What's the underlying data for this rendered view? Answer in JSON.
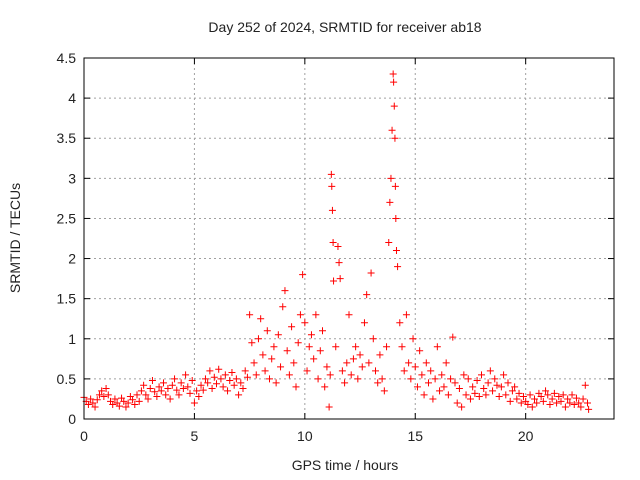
{
  "chart_data": {
    "type": "scatter",
    "title": "Day 252 of 2024, SRMTID for receiver ab18",
    "xlabel": "GPS time / hours",
    "ylabel": "SRMTID / TECUs",
    "xlim": [
      0,
      24
    ],
    "ylim": [
      0,
      4.5
    ],
    "x_ticks": [
      0,
      5,
      10,
      15,
      20
    ],
    "x_tick_labels": [
      "0",
      "5",
      "10",
      "15",
      "20"
    ],
    "y_ticks": [
      0,
      0.5,
      1,
      1.5,
      2,
      2.5,
      3,
      3.5,
      4,
      4.5
    ],
    "y_tick_labels": [
      "0",
      "0.5",
      "1",
      "1.5",
      "2",
      "2.5",
      "3",
      "3.5",
      "4",
      "4.5"
    ],
    "grid": true,
    "marker": "+",
    "series": [
      {
        "name": "SRMTID",
        "color": "#ff0000",
        "points": [
          [
            0.0,
            0.27
          ],
          [
            0.1,
            0.22
          ],
          [
            0.2,
            0.18
          ],
          [
            0.3,
            0.25
          ],
          [
            0.4,
            0.2
          ],
          [
            0.5,
            0.15
          ],
          [
            0.6,
            0.24
          ],
          [
            0.7,
            0.3
          ],
          [
            0.8,
            0.35
          ],
          [
            0.9,
            0.28
          ],
          [
            1.0,
            0.38
          ],
          [
            1.1,
            0.3
          ],
          [
            1.2,
            0.22
          ],
          [
            1.3,
            0.18
          ],
          [
            1.4,
            0.25
          ],
          [
            1.5,
            0.2
          ],
          [
            1.6,
            0.16
          ],
          [
            1.7,
            0.26
          ],
          [
            1.8,
            0.22
          ],
          [
            1.9,
            0.15
          ],
          [
            2.0,
            0.2
          ],
          [
            2.1,
            0.28
          ],
          [
            2.2,
            0.24
          ],
          [
            2.3,
            0.18
          ],
          [
            2.4,
            0.3
          ],
          [
            2.5,
            0.22
          ],
          [
            2.6,
            0.35
          ],
          [
            2.7,
            0.42
          ],
          [
            2.8,
            0.3
          ],
          [
            2.9,
            0.25
          ],
          [
            3.0,
            0.38
          ],
          [
            3.1,
            0.48
          ],
          [
            3.2,
            0.34
          ],
          [
            3.3,
            0.28
          ],
          [
            3.4,
            0.4
          ],
          [
            3.5,
            0.35
          ],
          [
            3.6,
            0.45
          ],
          [
            3.7,
            0.3
          ],
          [
            3.8,
            0.38
          ],
          [
            3.9,
            0.25
          ],
          [
            4.0,
            0.42
          ],
          [
            4.1,
            0.5
          ],
          [
            4.2,
            0.36
          ],
          [
            4.3,
            0.3
          ],
          [
            4.4,
            0.45
          ],
          [
            4.5,
            0.38
          ],
          [
            4.6,
            0.55
          ],
          [
            4.7,
            0.4
          ],
          [
            4.8,
            0.32
          ],
          [
            4.9,
            0.48
          ],
          [
            5.0,
            0.2
          ],
          [
            5.1,
            0.35
          ],
          [
            5.2,
            0.28
          ],
          [
            5.3,
            0.42
          ],
          [
            5.4,
            0.36
          ],
          [
            5.5,
            0.5
          ],
          [
            5.6,
            0.45
          ],
          [
            5.7,
            0.6
          ],
          [
            5.8,
            0.38
          ],
          [
            5.9,
            0.52
          ],
          [
            6.0,
            0.44
          ],
          [
            6.1,
            0.62
          ],
          [
            6.2,
            0.5
          ],
          [
            6.3,
            0.4
          ],
          [
            6.4,
            0.55
          ],
          [
            6.5,
            0.35
          ],
          [
            6.6,
            0.48
          ],
          [
            6.7,
            0.58
          ],
          [
            6.8,
            0.42
          ],
          [
            6.9,
            0.5
          ],
          [
            7.0,
            0.3
          ],
          [
            7.1,
            0.45
          ],
          [
            7.2,
            0.38
          ],
          [
            7.3,
            0.6
          ],
          [
            7.4,
            0.52
          ],
          [
            7.5,
            1.3
          ],
          [
            7.6,
            0.95
          ],
          [
            7.7,
            0.7
          ],
          [
            7.8,
            0.55
          ],
          [
            7.9,
            1.0
          ],
          [
            8.0,
            1.25
          ],
          [
            8.1,
            0.8
          ],
          [
            8.2,
            0.6
          ],
          [
            8.3,
            1.1
          ],
          [
            8.4,
            0.5
          ],
          [
            8.5,
            0.75
          ],
          [
            8.6,
            0.9
          ],
          [
            8.7,
            0.45
          ],
          [
            8.8,
            1.05
          ],
          [
            8.9,
            0.65
          ],
          [
            9.0,
            1.4
          ],
          [
            9.1,
            1.6
          ],
          [
            9.2,
            0.85
          ],
          [
            9.3,
            0.55
          ],
          [
            9.4,
            1.15
          ],
          [
            9.5,
            0.7
          ],
          [
            9.6,
            0.4
          ],
          [
            9.7,
            0.95
          ],
          [
            9.8,
            1.3
          ],
          [
            9.9,
            1.8
          ],
          [
            10.0,
            1.2
          ],
          [
            10.1,
            0.6
          ],
          [
            10.2,
            0.9
          ],
          [
            10.3,
            1.05
          ],
          [
            10.4,
            0.75
          ],
          [
            10.5,
            1.3
          ],
          [
            10.6,
            0.5
          ],
          [
            10.7,
            0.85
          ],
          [
            10.8,
            1.1
          ],
          [
            10.9,
            0.4
          ],
          [
            11.0,
            0.65
          ],
          [
            11.1,
            0.15
          ],
          [
            11.15,
            0.55
          ],
          [
            11.2,
            3.05
          ],
          [
            11.22,
            2.9
          ],
          [
            11.25,
            2.6
          ],
          [
            11.28,
            2.2
          ],
          [
            11.3,
            1.72
          ],
          [
            11.4,
            0.9
          ],
          [
            11.5,
            2.15
          ],
          [
            11.55,
            1.95
          ],
          [
            11.6,
            1.75
          ],
          [
            11.7,
            0.6
          ],
          [
            11.8,
            0.45
          ],
          [
            11.9,
            0.7
          ],
          [
            12.0,
            1.3
          ],
          [
            12.1,
            0.55
          ],
          [
            12.2,
            0.75
          ],
          [
            12.3,
            0.9
          ],
          [
            12.4,
            0.5
          ],
          [
            12.5,
            0.8
          ],
          [
            12.6,
            0.65
          ],
          [
            12.7,
            1.2
          ],
          [
            12.8,
            1.55
          ],
          [
            12.9,
            0.7
          ],
          [
            13.0,
            1.82
          ],
          [
            13.1,
            1.0
          ],
          [
            13.2,
            0.6
          ],
          [
            13.3,
            0.45
          ],
          [
            13.4,
            0.8
          ],
          [
            13.5,
            0.5
          ],
          [
            13.6,
            0.35
          ],
          [
            13.7,
            0.9
          ],
          [
            13.8,
            2.2
          ],
          [
            13.85,
            2.7
          ],
          [
            13.9,
            3.0
          ],
          [
            13.95,
            3.6
          ],
          [
            14.0,
            4.3
          ],
          [
            14.02,
            4.2
          ],
          [
            14.05,
            3.9
          ],
          [
            14.08,
            3.5
          ],
          [
            14.1,
            2.9
          ],
          [
            14.12,
            2.5
          ],
          [
            14.15,
            2.1
          ],
          [
            14.2,
            1.9
          ],
          [
            14.3,
            1.2
          ],
          [
            14.4,
            0.9
          ],
          [
            14.5,
            0.6
          ],
          [
            14.6,
            1.3
          ],
          [
            14.7,
            0.7
          ],
          [
            14.8,
            0.5
          ],
          [
            14.9,
            1.0
          ],
          [
            15.0,
            0.65
          ],
          [
            15.1,
            0.4
          ],
          [
            15.2,
            0.85
          ],
          [
            15.3,
            0.55
          ],
          [
            15.4,
            0.3
          ],
          [
            15.5,
            0.7
          ],
          [
            15.6,
            0.45
          ],
          [
            15.7,
            0.6
          ],
          [
            15.8,
            0.25
          ],
          [
            15.9,
            0.5
          ],
          [
            16.0,
            0.9
          ],
          [
            16.1,
            0.35
          ],
          [
            16.2,
            0.55
          ],
          [
            16.3,
            0.4
          ],
          [
            16.4,
            0.7
          ],
          [
            16.5,
            0.3
          ],
          [
            16.6,
            0.5
          ],
          [
            16.7,
            1.02
          ],
          [
            16.8,
            0.45
          ],
          [
            16.9,
            0.2
          ],
          [
            17.0,
            0.38
          ],
          [
            17.1,
            0.15
          ],
          [
            17.2,
            0.55
          ],
          [
            17.3,
            0.3
          ],
          [
            17.4,
            0.5
          ],
          [
            17.5,
            0.25
          ],
          [
            17.6,
            0.4
          ],
          [
            17.7,
            0.32
          ],
          [
            17.8,
            0.48
          ],
          [
            17.9,
            0.28
          ],
          [
            18.0,
            0.55
          ],
          [
            18.1,
            0.38
          ],
          [
            18.2,
            0.3
          ],
          [
            18.3,
            0.45
          ],
          [
            18.4,
            0.6
          ],
          [
            18.5,
            0.35
          ],
          [
            18.6,
            0.5
          ],
          [
            18.7,
            0.42
          ],
          [
            18.8,
            0.28
          ],
          [
            18.9,
            0.4
          ],
          [
            19.0,
            0.55
          ],
          [
            19.1,
            0.3
          ],
          [
            19.2,
            0.45
          ],
          [
            19.3,
            0.22
          ],
          [
            19.4,
            0.35
          ],
          [
            19.5,
            0.4
          ],
          [
            19.6,
            0.25
          ],
          [
            19.7,
            0.32
          ],
          [
            19.8,
            0.2
          ],
          [
            19.9,
            0.28
          ],
          [
            20.0,
            0.22
          ],
          [
            20.1,
            0.18
          ],
          [
            20.2,
            0.3
          ],
          [
            20.3,
            0.15
          ],
          [
            20.4,
            0.25
          ],
          [
            20.5,
            0.2
          ],
          [
            20.6,
            0.32
          ],
          [
            20.7,
            0.28
          ],
          [
            20.8,
            0.22
          ],
          [
            20.9,
            0.35
          ],
          [
            21.0,
            0.3
          ],
          [
            21.1,
            0.18
          ],
          [
            21.2,
            0.25
          ],
          [
            21.3,
            0.32
          ],
          [
            21.4,
            0.2
          ],
          [
            21.5,
            0.28
          ],
          [
            21.6,
            0.22
          ],
          [
            21.7,
            0.3
          ],
          [
            21.8,
            0.15
          ],
          [
            21.9,
            0.25
          ],
          [
            22.0,
            0.2
          ],
          [
            22.1,
            0.3
          ],
          [
            22.2,
            0.18
          ],
          [
            22.3,
            0.26
          ],
          [
            22.4,
            0.2
          ],
          [
            22.5,
            0.15
          ],
          [
            22.6,
            0.25
          ],
          [
            22.7,
            0.42
          ],
          [
            22.8,
            0.2
          ],
          [
            22.85,
            0.12
          ]
        ]
      }
    ]
  }
}
